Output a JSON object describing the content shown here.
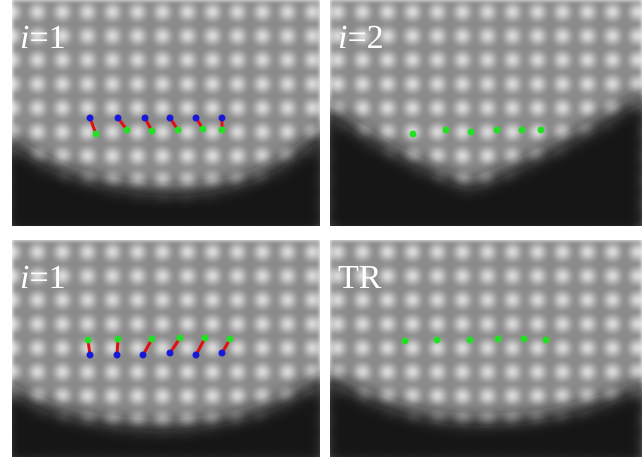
{
  "panels": [
    {
      "label": {
        "italic": "i",
        "rest": "=1"
      }
    },
    {
      "label": {
        "italic": "i",
        "rest": "=2"
      }
    },
    {
      "label": {
        "italic": "i",
        "rest": "=1"
      }
    },
    {
      "label": {
        "rest": "TR"
      }
    }
  ]
}
